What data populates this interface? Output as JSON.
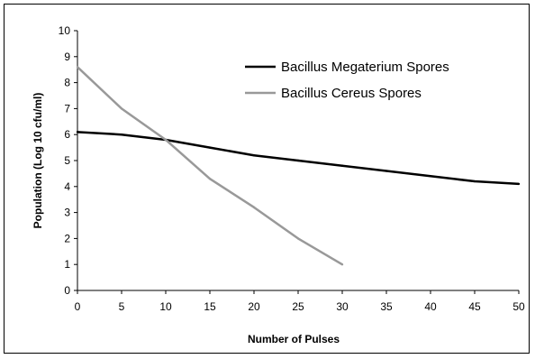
{
  "chart_data": {
    "type": "line",
    "title": "",
    "xlabel": "Number of Pulses",
    "ylabel": "Population (Log 10 cfu/ml)",
    "xlim": [
      0,
      50
    ],
    "ylim": [
      0,
      10
    ],
    "xticks": [
      0,
      5,
      10,
      15,
      20,
      25,
      30,
      35,
      40,
      45,
      50
    ],
    "yticks": [
      0,
      1,
      2,
      3,
      4,
      5,
      6,
      7,
      8,
      9,
      10
    ],
    "grid": false,
    "legend_position": "top-right",
    "series": [
      {
        "name": "Bacillus Megaterium Spores",
        "color": "#000000",
        "x": [
          0,
          5,
          10,
          15,
          20,
          25,
          30,
          35,
          40,
          45,
          50
        ],
        "y": [
          6.1,
          6.0,
          5.8,
          5.5,
          5.2,
          5.0,
          4.8,
          4.6,
          4.4,
          4.2,
          4.1
        ]
      },
      {
        "name": "Bacillus Cereus Spores",
        "color": "#999999",
        "x": [
          0,
          5,
          10,
          15,
          20,
          25,
          30
        ],
        "y": [
          8.6,
          7.0,
          5.8,
          4.3,
          3.2,
          2.0,
          1.0
        ]
      }
    ]
  }
}
